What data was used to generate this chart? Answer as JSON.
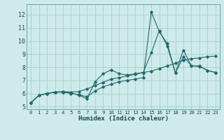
{
  "xlabel": "Humidex (Indice chaleur)",
  "bg_color": "#ceeaea",
  "grid_color": "#aacece",
  "line_color": "#1a6b6b",
  "xlim": [
    -0.5,
    23.5
  ],
  "ylim": [
    4.8,
    12.8
  ],
  "xticks": [
    0,
    1,
    2,
    3,
    4,
    5,
    6,
    7,
    8,
    9,
    10,
    11,
    12,
    13,
    14,
    15,
    16,
    17,
    18,
    19,
    20,
    21,
    22,
    23
  ],
  "yticks": [
    5,
    6,
    7,
    8,
    9,
    10,
    11,
    12
  ],
  "series1_x": [
    0,
    1,
    2,
    3,
    4,
    5,
    6,
    7,
    8,
    9,
    10,
    11,
    12,
    13,
    14,
    15,
    16,
    17,
    18,
    19,
    20,
    21,
    22,
    23
  ],
  "series1_y": [
    5.3,
    5.85,
    6.0,
    6.1,
    6.1,
    6.05,
    5.85,
    5.6,
    6.9,
    7.5,
    7.8,
    7.5,
    7.4,
    7.5,
    7.6,
    9.1,
    10.8,
    9.6,
    7.55,
    8.8,
    8.1,
    8.1,
    7.75,
    7.6
  ],
  "series2_x": [
    0,
    1,
    2,
    3,
    4,
    5,
    6,
    7,
    8,
    9,
    10,
    11,
    12,
    13,
    14,
    15,
    16,
    17,
    18,
    19,
    20,
    21,
    22,
    23
  ],
  "series2_y": [
    5.3,
    5.85,
    6.0,
    6.1,
    6.15,
    6.1,
    6.15,
    6.35,
    6.6,
    6.85,
    7.1,
    7.2,
    7.35,
    7.45,
    7.6,
    7.7,
    7.9,
    8.1,
    8.3,
    8.55,
    8.65,
    8.7,
    8.8,
    8.85
  ],
  "series3_x": [
    0,
    1,
    2,
    3,
    4,
    5,
    6,
    7,
    8,
    9,
    10,
    11,
    12,
    13,
    14,
    15,
    16,
    17,
    18,
    19,
    20,
    21,
    22,
    23
  ],
  "series3_y": [
    5.3,
    5.85,
    6.0,
    6.1,
    6.1,
    6.0,
    5.9,
    5.75,
    6.2,
    6.5,
    6.7,
    6.9,
    7.0,
    7.1,
    7.2,
    12.2,
    10.7,
    9.8,
    7.55,
    9.3,
    8.1,
    8.05,
    7.75,
    7.6
  ]
}
